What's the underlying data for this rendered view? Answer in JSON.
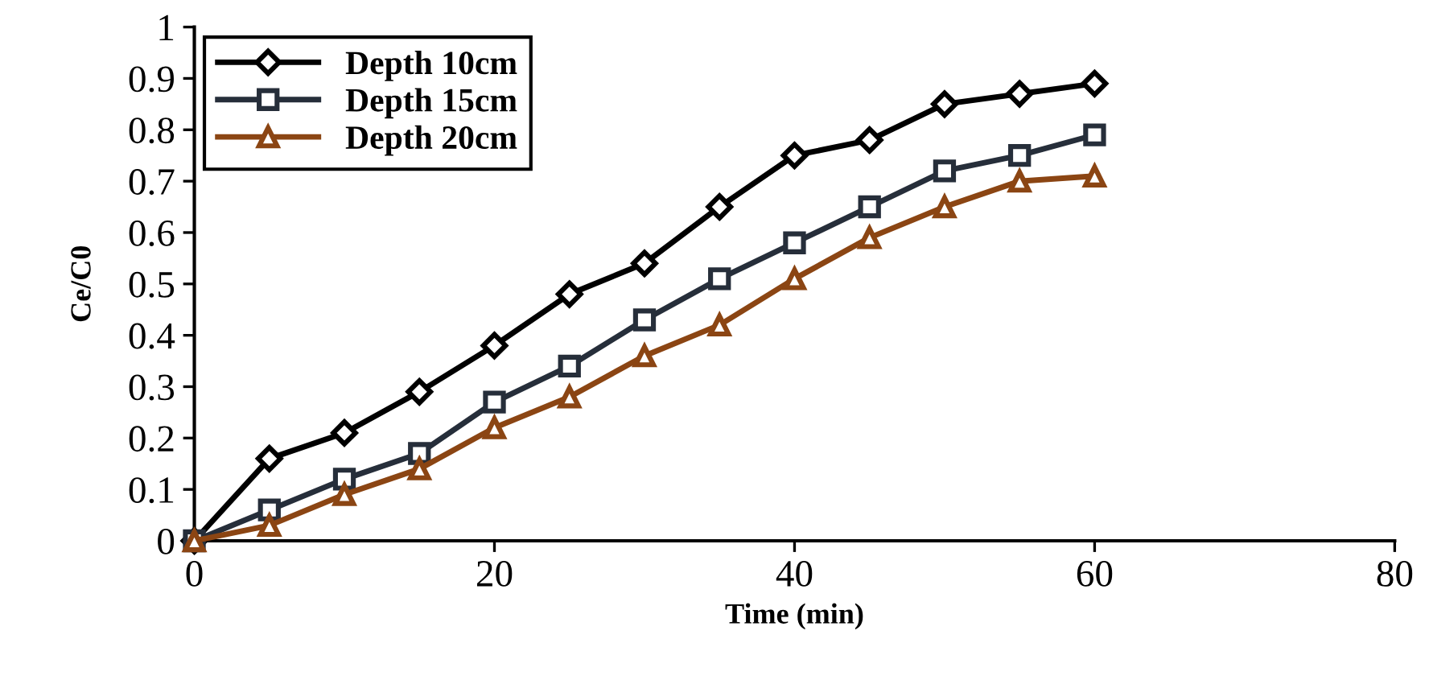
{
  "chart_data": {
    "type": "line",
    "xlabel": "Time (min)",
    "ylabel": "Ce/C0",
    "x": [
      0,
      5,
      10,
      15,
      20,
      25,
      30,
      35,
      40,
      45,
      50,
      55,
      60
    ],
    "series": [
      {
        "name": "Depth 10cm",
        "color": "#000000",
        "marker": "diamond",
        "values": [
          0,
          0.16,
          0.21,
          0.29,
          0.38,
          0.48,
          0.54,
          0.65,
          0.75,
          0.78,
          0.85,
          0.87,
          0.89
        ]
      },
      {
        "name": "Depth 15cm",
        "color": "#262e3a",
        "marker": "square",
        "values": [
          0,
          0.06,
          0.12,
          0.17,
          0.27,
          0.34,
          0.43,
          0.51,
          0.58,
          0.65,
          0.72,
          0.75,
          0.79
        ]
      },
      {
        "name": "Depth 20cm",
        "color": "#8b4513",
        "marker": "triangle",
        "values": [
          0,
          0.03,
          0.09,
          0.14,
          0.22,
          0.28,
          0.36,
          0.42,
          0.51,
          0.59,
          0.65,
          0.7,
          0.71
        ]
      }
    ],
    "xlim": [
      0,
      80
    ],
    "xticks": [
      0,
      20,
      40,
      60,
      80
    ],
    "ylim": [
      0,
      1
    ],
    "yticks": [
      0,
      {
        "value": 0.1,
        "label": "0.1"
      },
      {
        "value": 0.2,
        "label": "0.2"
      },
      {
        "value": 0.3,
        "label": "0.3"
      },
      {
        "value": 0.4,
        "label": "0.4"
      },
      {
        "value": 0.5,
        "label": "0.5"
      },
      {
        "value": 0.6,
        "label": "0.6"
      },
      {
        "value": 0.7,
        "label": "0.7"
      },
      {
        "value": 0.8,
        "label": "0.8"
      },
      {
        "value": 0.9,
        "label": "0.9"
      },
      1
    ],
    "grid": false,
    "legend": "top left",
    "line_style": "solid"
  }
}
